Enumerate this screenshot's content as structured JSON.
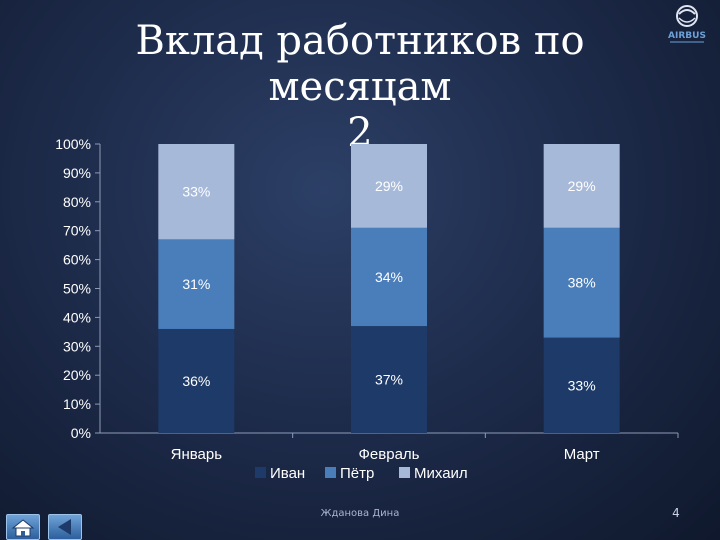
{
  "slide": {
    "title_line1": "Вклад работников по месяцам",
    "title_line2": "2",
    "footer": "Жданова Дина",
    "page_number": "4",
    "logo_text": "AIRBUS",
    "background_color": "#1b2846"
  },
  "navigation": {
    "home_icon": "home-icon",
    "back_icon": "back-arrow-icon"
  },
  "chart_data": {
    "type": "bar",
    "stacked": true,
    "percent_stacked": true,
    "categories": [
      "Январь",
      "Февраль",
      "Март"
    ],
    "series": [
      {
        "name": "Иван",
        "values": [
          36,
          37,
          33
        ],
        "labels": [
          "36%",
          "37%",
          "33%"
        ],
        "color": "#1d3a68"
      },
      {
        "name": "Пётр",
        "values": [
          31,
          34,
          38
        ],
        "labels": [
          "31%",
          "34%",
          "38%"
        ],
        "color": "#4a7ebb"
      },
      {
        "name": "Михаил",
        "values": [
          33,
          29,
          29
        ],
        "labels": [
          "33%",
          "29%",
          "29%"
        ],
        "color": "#a7b9d9"
      }
    ],
    "yticks": [
      "0%",
      "10%",
      "20%",
      "30%",
      "40%",
      "50%",
      "60%",
      "70%",
      "80%",
      "90%",
      "100%"
    ],
    "ylim": [
      0,
      100
    ],
    "legend_position": "bottom",
    "grid": false,
    "data_labels": true
  }
}
